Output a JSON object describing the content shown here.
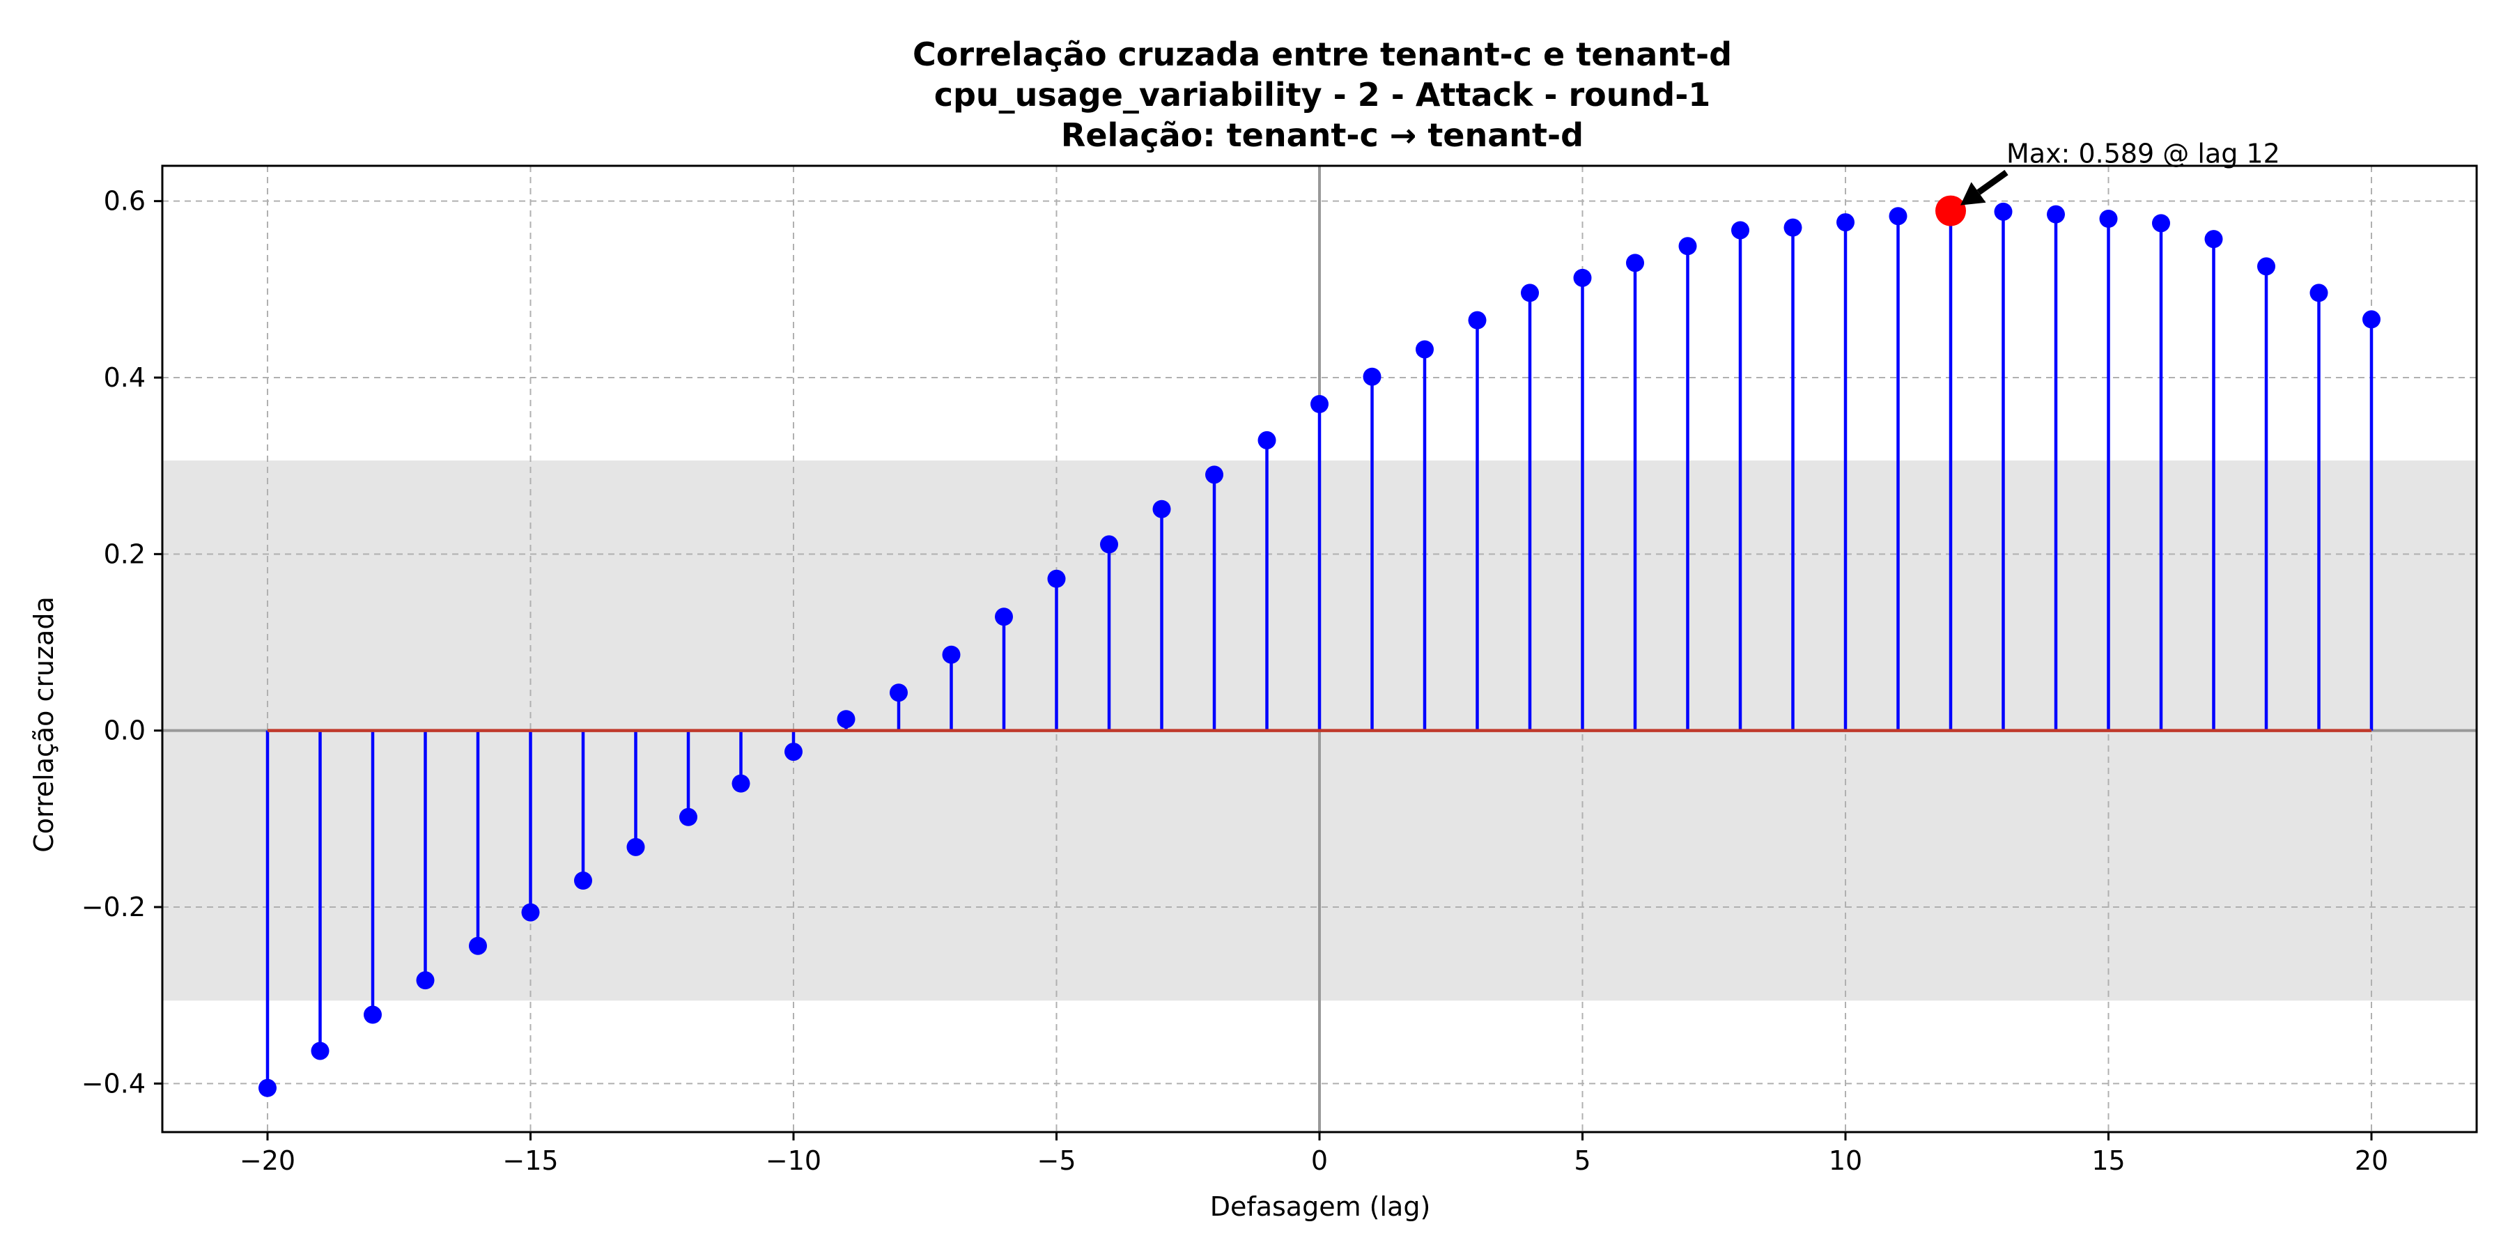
{
  "chart_data": {
    "type": "stem",
    "title_lines": [
      "Correlação cruzada entre tenant-c e tenant-d",
      "cpu_usage_variability - 2 - Attack - round-1",
      "Relação: tenant-c → tenant-d"
    ],
    "xlabel": "Defasagem (lag)",
    "ylabel": "Correlação cruzada",
    "xlim": [
      -22,
      22
    ],
    "ylim": [
      -0.455,
      0.64
    ],
    "x_ticks": [
      -20,
      -15,
      -10,
      -5,
      0,
      5,
      10,
      15,
      20
    ],
    "x_tick_labels": [
      "−20",
      "−15",
      "−10",
      "−5",
      "0",
      "5",
      "10",
      "15",
      "20"
    ],
    "y_ticks": [
      -0.4,
      -0.2,
      0.0,
      0.2,
      0.4,
      0.6
    ],
    "y_tick_labels": [
      "−0.4",
      "−0.2",
      "0.0",
      "0.2",
      "0.4",
      "0.6"
    ],
    "grid": true,
    "significance_band": [
      -0.306,
      0.306
    ],
    "lags": [
      -20,
      -19,
      -18,
      -17,
      -16,
      -15,
      -14,
      -13,
      -12,
      -11,
      -10,
      -9,
      -8,
      -7,
      -6,
      -5,
      -4,
      -3,
      -2,
      -1,
      0,
      1,
      2,
      3,
      4,
      5,
      6,
      7,
      8,
      9,
      10,
      11,
      12,
      13,
      14,
      15,
      16,
      17,
      18,
      19,
      20
    ],
    "values": [
      -0.405,
      -0.363,
      -0.322,
      -0.283,
      -0.244,
      -0.206,
      -0.17,
      -0.132,
      -0.098,
      -0.06,
      -0.024,
      0.013,
      0.043,
      0.086,
      0.129,
      0.172,
      0.211,
      0.251,
      0.29,
      0.329,
      0.37,
      0.401,
      0.432,
      0.465,
      0.496,
      0.513,
      0.53,
      0.549,
      0.567,
      0.57,
      0.576,
      0.583,
      0.589,
      0.588,
      0.585,
      0.58,
      0.575,
      0.557,
      0.526,
      0.496,
      0.466
    ],
    "max_point": {
      "lag": 12,
      "value": 0.589
    },
    "annotation": "Max: 0.589 @ lag 12",
    "colors": {
      "stem": "#0000ff",
      "marker": "#0000ff",
      "baseline": "#c0392b",
      "max_marker": "#ff0000",
      "band": "#e5e5e5",
      "grid": "#b0b0b0",
      "zero_lines": "#999999"
    }
  }
}
